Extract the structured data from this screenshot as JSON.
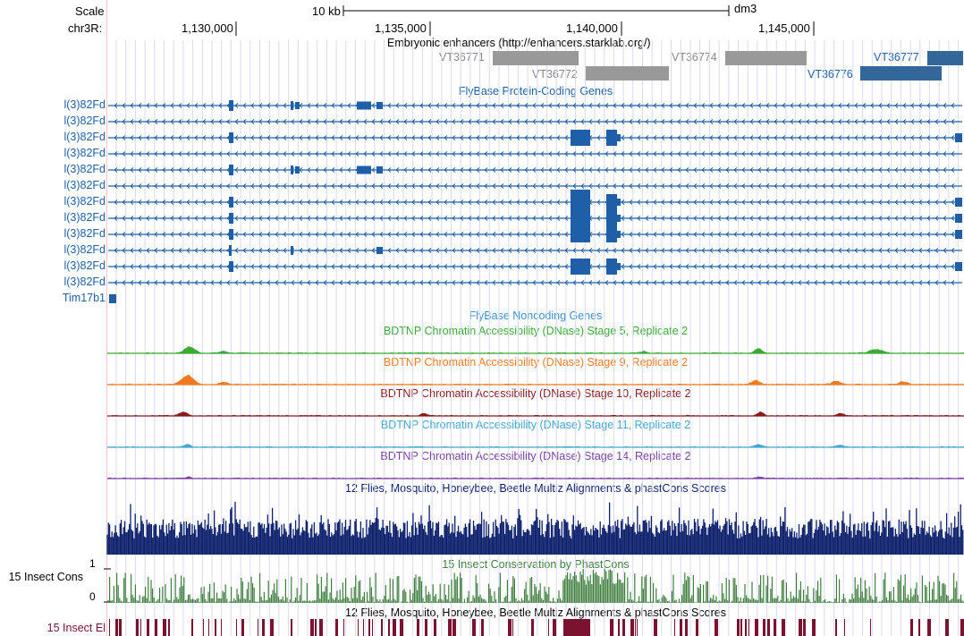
{
  "colors": {
    "gene": "#1f5fa8",
    "gene_label": "#1f5fa8",
    "enhancer_gray": "#999999",
    "enhancer_blue": "#336699",
    "enhancer_gray_label": "#888888",
    "noncoding": "#3d8fd1",
    "stage5": "#3aaa35",
    "stage9": "#f07b1f",
    "stage10": "#8b1a1a",
    "stage11": "#41a8d1",
    "stage14": "#7a3fa0",
    "multiz": "#0b1f6b",
    "phastcons": "#3f7f3f",
    "elements": "#7a1230",
    "grid": "#d9d9f0"
  },
  "scale": {
    "label": "Scale",
    "bar_label": "10 kb",
    "assembly": "dm3"
  },
  "chrom": {
    "label": "chr3R:",
    "ticks": [
      "1,130,000",
      "1,135,000",
      "1,140,000",
      "1,145,000"
    ]
  },
  "enhancers": {
    "title": "Embryonic enhancers (http://enhancers.starklab.org/)",
    "items": [
      {
        "name": "VT36771",
        "color": "gray"
      },
      {
        "name": "VT36772",
        "color": "gray"
      },
      {
        "name": "VT36774",
        "color": "gray"
      },
      {
        "name": "VT36776",
        "color": "blue"
      },
      {
        "name": "VT36777",
        "color": "blue"
      }
    ]
  },
  "genes": {
    "title": "FlyBase Protein-Coding Genes",
    "rows": [
      "l(3)82Fd",
      "l(3)82Fd",
      "l(3)82Fd",
      "l(3)82Fd",
      "l(3)82Fd",
      "l(3)82Fd",
      "l(3)82Fd",
      "l(3)82Fd",
      "l(3)82Fd",
      "l(3)82Fd",
      "l(3)82Fd",
      "l(3)82Fd"
    ],
    "extra": "Tim17b1"
  },
  "noncoding": {
    "title": "FlyBase Noncoding Genes"
  },
  "dnase": [
    {
      "title": "BDTNP Chromatin Accessibility (DNase) Stage 5, Replicate 2",
      "color_key": "stage5"
    },
    {
      "title": "BDTNP Chromatin Accessibility (DNase) Stage 9, Replicate 2",
      "color_key": "stage9"
    },
    {
      "title": "BDTNP Chromatin Accessibility (DNase) Stage 10, Replicate 2",
      "color_key": "stage10"
    },
    {
      "title": "BDTNP Chromatin Accessibility (DNase) Stage 11, Replicate 2",
      "color_key": "stage11"
    },
    {
      "title": "BDTNP Chromatin Accessibility (DNase) Stage 14, Replicate 2",
      "color_key": "stage14"
    }
  ],
  "multiz": {
    "title": "12 Flies, Mosquito, Honeybee, Beetle Multiz Alignments & phastCons Scores"
  },
  "phastcons": {
    "side_label": "15 Insect Cons",
    "title": "15 Insect Conservation by PhastCons",
    "y_max": "1",
    "y_min": "0"
  },
  "elements": {
    "side_label": "15 Insect El",
    "title": "12 Flies, Mosquito, Honeybee, Beetle Multiz Alignments & phastCons Scores"
  }
}
